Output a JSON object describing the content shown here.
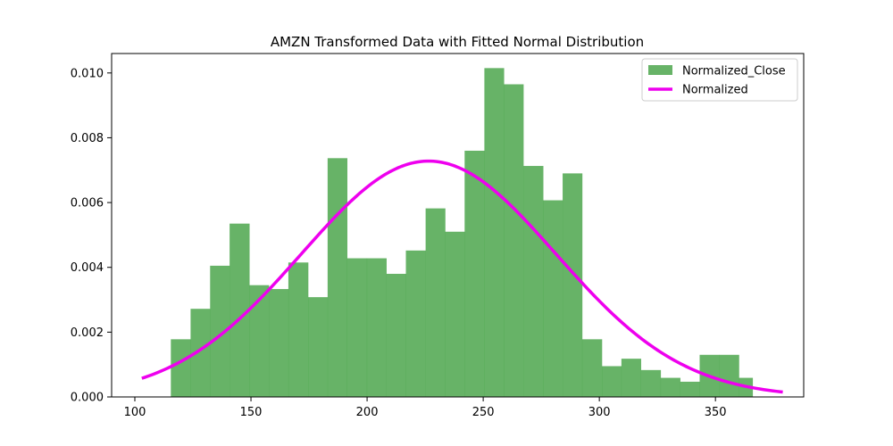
{
  "chart_data": {
    "type": "histogram",
    "title": "AMZN Transformed Data with Fitted Normal Distribution",
    "xlabel": "",
    "ylabel": "",
    "xlim": [
      90,
      388
    ],
    "ylim": [
      0,
      0.0106
    ],
    "xticks": [
      100,
      150,
      200,
      250,
      300,
      350
    ],
    "yticks": [
      0.0,
      0.002,
      0.004,
      0.006,
      0.008,
      0.01
    ],
    "ytick_labels": [
      "0.000",
      "0.002",
      "0.004",
      "0.006",
      "0.008",
      "0.010"
    ],
    "grid": false,
    "legend_position": "top-right",
    "bins": {
      "edges": [
        115.5,
        124.0,
        132.4,
        140.8,
        149.3,
        157.7,
        166.1,
        174.6,
        183.0,
        191.4,
        199.9,
        208.3,
        216.7,
        225.2,
        233.6,
        242.0,
        250.5,
        258.9,
        267.3,
        275.8,
        284.2,
        292.6,
        301.1,
        309.5,
        317.9,
        326.4,
        334.8,
        343.2,
        351.7,
        360.1,
        366.0
      ],
      "densities": [
        0.00178,
        0.00272,
        0.00405,
        0.00535,
        0.00345,
        0.00333,
        0.00415,
        0.00308,
        0.00737,
        0.00428,
        0.00428,
        0.0038,
        0.00452,
        0.00582,
        0.0051,
        0.0076,
        0.01015,
        0.00965,
        0.00713,
        0.00607,
        0.0069,
        0.00178,
        0.00095,
        0.00118,
        0.00083,
        0.00059,
        0.00047,
        0.0013,
        0.0013,
        0.00059
      ]
    },
    "series": [
      {
        "name": "Normalized_Close",
        "kind": "bar",
        "color": "#4ca64c"
      },
      {
        "name": "Normalized",
        "kind": "line",
        "color": "#ee00ee",
        "mean": 226.5,
        "std": 54.8,
        "x_range": [
          103,
          379
        ]
      }
    ]
  }
}
